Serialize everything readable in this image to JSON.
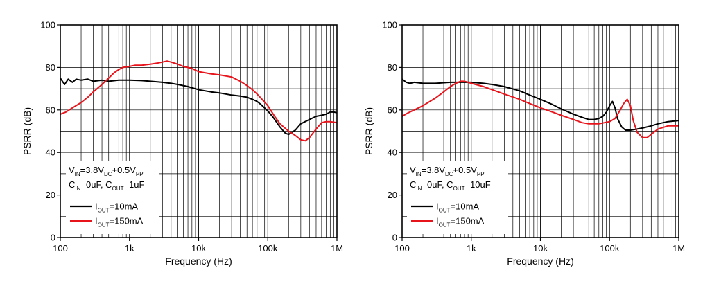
{
  "chart_data": [
    {
      "type": "line",
      "xscale": "log",
      "xlabel": "Frequency (Hz)",
      "ylabel": "PSRR (dB)",
      "xlim": [
        100,
        1000000
      ],
      "ylim": [
        0,
        100
      ],
      "xticks": [
        100,
        1000,
        10000,
        100000,
        1000000
      ],
      "xtick_labels": [
        "100",
        "1k",
        "10k",
        "100k",
        "1M"
      ],
      "yticks": [
        0,
        20,
        40,
        60,
        80,
        100
      ],
      "ytick_labels": [
        "0",
        "20",
        "40",
        "60",
        "80",
        "100"
      ],
      "grid": true,
      "legend": {
        "position": "bottom-left",
        "condition_lines": [
          [
            {
              "t": "V"
            },
            {
              "t": "IN",
              "sub": true
            },
            {
              "t": "=3.8V"
            },
            {
              "t": "DC",
              "sub": true
            },
            {
              "t": "+0.5V"
            },
            {
              "t": "PP",
              "sub": true
            }
          ],
          [
            {
              "t": "C"
            },
            {
              "t": "IN",
              "sub": true
            },
            {
              "t": "=0uF, C"
            },
            {
              "t": "OUT",
              "sub": true
            },
            {
              "t": "=1uF"
            }
          ]
        ]
      },
      "series": [
        {
          "name": "IOUT=10mA",
          "label_parts": [
            {
              "t": "I"
            },
            {
              "t": "OUT",
              "sub": true
            },
            {
              "t": "=10mA"
            }
          ],
          "color": "#000000",
          "x": [
            100,
            115,
            130,
            150,
            170,
            200,
            250,
            300,
            400,
            500,
            700,
            1000,
            1500,
            2000,
            3000,
            4000,
            5000,
            7000,
            10000,
            15000,
            20000,
            30000,
            40000,
            50000,
            60000,
            70000,
            80000,
            100000,
            120000,
            150000,
            180000,
            200000,
            250000,
            300000,
            400000,
            500000,
            600000,
            700000,
            800000,
            900000,
            1000000
          ],
          "y": [
            75,
            72,
            74.5,
            73,
            74.5,
            74,
            74.5,
            73.5,
            74,
            73.5,
            74,
            74,
            73.8,
            73.5,
            73,
            72.5,
            72,
            71,
            69.5,
            68.5,
            68,
            67,
            66.5,
            66,
            65,
            64,
            62.5,
            59.5,
            56.5,
            52,
            49,
            48.5,
            50.5,
            53.5,
            55.5,
            57,
            57.5,
            58,
            59,
            59,
            58.7
          ]
        },
        {
          "name": "IOUT=150mA",
          "label_parts": [
            {
              "t": "I"
            },
            {
              "t": "OUT",
              "sub": true
            },
            {
              "t": "=150mA"
            }
          ],
          "color": "#e8141c",
          "x": [
            100,
            120,
            150,
            200,
            250,
            300,
            400,
            500,
            600,
            700,
            800,
            1000,
            1200,
            1500,
            2000,
            2500,
            3000,
            3500,
            4000,
            4500,
            5000,
            6000,
            7000,
            8000,
            10000,
            15000,
            20000,
            30000,
            40000,
            50000,
            60000,
            70000,
            80000,
            100000,
            120000,
            150000,
            200000,
            250000,
            300000,
            350000,
            400000,
            500000,
            600000,
            700000,
            800000,
            1000000
          ],
          "y": [
            58,
            59,
            61,
            63.5,
            66,
            68.5,
            72,
            75,
            77.5,
            79,
            80,
            80.5,
            81,
            81,
            81.5,
            82,
            82.5,
            83,
            82.5,
            82,
            81.5,
            80.5,
            80,
            79.5,
            78,
            77,
            76.5,
            75.5,
            73.5,
            71.5,
            69.5,
            67.5,
            65.5,
            62,
            58,
            53.5,
            50,
            48,
            46,
            45.5,
            47,
            51,
            54,
            54.5,
            54.5,
            54
          ]
        }
      ]
    },
    {
      "type": "line",
      "xscale": "log",
      "xlabel": "Frequency (Hz)",
      "ylabel": "PSRR (dB)",
      "xlim": [
        100,
        1000000
      ],
      "ylim": [
        0,
        100
      ],
      "xticks": [
        100,
        1000,
        10000,
        100000,
        1000000
      ],
      "xtick_labels": [
        "100",
        "1k",
        "10k",
        "100k",
        "1M"
      ],
      "yticks": [
        0,
        20,
        40,
        60,
        80,
        100
      ],
      "ytick_labels": [
        "0",
        "20",
        "40",
        "60",
        "80",
        "100"
      ],
      "grid": true,
      "legend": {
        "position": "bottom-left",
        "condition_lines": [
          [
            {
              "t": "V"
            },
            {
              "t": "IN",
              "sub": true
            },
            {
              "t": "=3.8V"
            },
            {
              "t": "DC",
              "sub": true
            },
            {
              "t": "+0.5V"
            },
            {
              "t": "PP",
              "sub": true
            }
          ],
          [
            {
              "t": "C"
            },
            {
              "t": "IN",
              "sub": true
            },
            {
              "t": "=0uF, C"
            },
            {
              "t": "OUT",
              "sub": true
            },
            {
              "t": "=10uF"
            }
          ]
        ]
      },
      "series": [
        {
          "name": "IOUT=10mA",
          "label_parts": [
            {
              "t": "I"
            },
            {
              "t": "OUT",
              "sub": true
            },
            {
              "t": "=10mA"
            }
          ],
          "color": "#000000",
          "x": [
            100,
            115,
            130,
            150,
            200,
            300,
            500,
            700,
            1000,
            1500,
            2000,
            3000,
            5000,
            7000,
            10000,
            15000,
            20000,
            30000,
            40000,
            50000,
            60000,
            70000,
            80000,
            90000,
            100000,
            110000,
            120000,
            130000,
            150000,
            170000,
            200000,
            250000,
            300000,
            400000,
            500000,
            700000,
            1000000
          ],
          "y": [
            74.5,
            73,
            72.5,
            73,
            72.5,
            72.5,
            73,
            73,
            73,
            72.5,
            72,
            71,
            69,
            67,
            65,
            62.5,
            60.5,
            58,
            56.5,
            55.5,
            55.5,
            56,
            57,
            59,
            62,
            64,
            61,
            56,
            52,
            50.5,
            50.5,
            51,
            51.5,
            52.5,
            53.5,
            54.5,
            55
          ]
        },
        {
          "name": "IOUT=150mA",
          "label_parts": [
            {
              "t": "I"
            },
            {
              "t": "OUT",
              "sub": true
            },
            {
              "t": "=150mA"
            }
          ],
          "color": "#e8141c",
          "x": [
            100,
            120,
            150,
            200,
            300,
            400,
            500,
            600,
            700,
            800,
            900,
            1000,
            1500,
            2000,
            3000,
            5000,
            7000,
            10000,
            15000,
            20000,
            30000,
            40000,
            50000,
            70000,
            100000,
            120000,
            140000,
            160000,
            180000,
            200000,
            220000,
            250000,
            300000,
            350000,
            400000,
            500000,
            700000,
            1000000
          ],
          "y": [
            57,
            58.5,
            60,
            62,
            65.5,
            68.5,
            71,
            72.5,
            73.5,
            73.5,
            73,
            72.5,
            71,
            69.5,
            67.5,
            65,
            63,
            61,
            59,
            57.5,
            55.5,
            54,
            53.5,
            53.5,
            54.5,
            56,
            59.5,
            63,
            65,
            62,
            55,
            49.5,
            47,
            47,
            48.5,
            51,
            52.5,
            52.5
          ]
        }
      ]
    }
  ]
}
